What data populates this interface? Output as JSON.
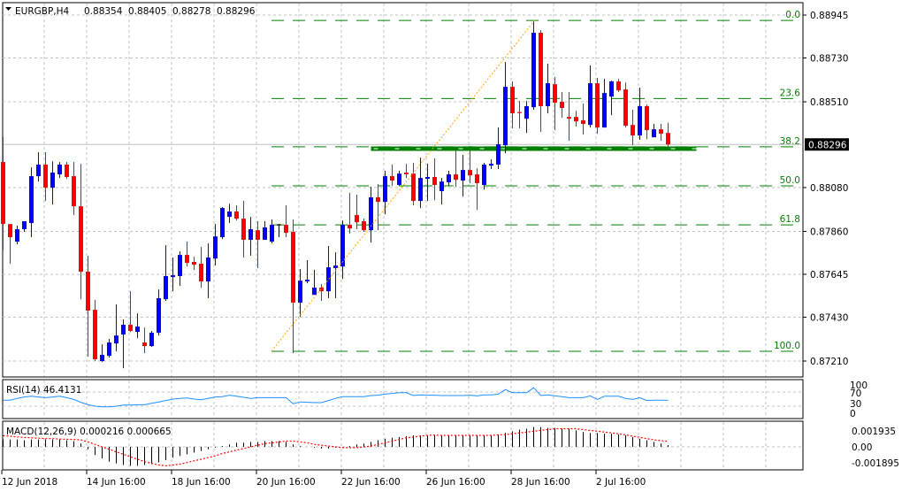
{
  "header": {
    "symbol": "EURGBP,H4",
    "open": "0.88354",
    "high": "0.88405",
    "low": "0.88278",
    "close": "0.88296"
  },
  "colors": {
    "bull": "#0000ff",
    "bear": "#ff0000",
    "doji": "#000000",
    "fib": "#008000",
    "trendline": "#ffa500",
    "rsi": "#1e90ff",
    "macd_hist": "#000000",
    "macd_signal": "#ff0000",
    "support": "#008000"
  },
  "chart_data": {
    "type": "candlestick",
    "title": "EURGBP,H4",
    "price_axis": {
      "range": [
        0.871,
        0.8896
      ],
      "ticks": [
        "0.88945",
        "0.88730",
        "0.88510",
        "0.88080",
        "0.87860",
        "0.87645",
        "0.87430",
        "0.87210"
      ],
      "current_price": "0.88296"
    },
    "time_labels": [
      {
        "bar": 0,
        "label": "12 Jun 2018"
      },
      {
        "bar": 12,
        "label": "14 Jun 16:00"
      },
      {
        "bar": 24,
        "label": "18 Jun 16:00"
      },
      {
        "bar": 36,
        "label": "20 Jun 16:00"
      },
      {
        "bar": 48,
        "label": "22 Jun 16:00"
      },
      {
        "bar": 60,
        "label": "26 Jun 16:00"
      },
      {
        "bar": 72,
        "label": "28 Jun 16:00"
      },
      {
        "bar": 84,
        "label": "2 Jul 16:00"
      }
    ],
    "ohlc": [
      [
        0.88208,
        0.88333,
        0.87765,
        0.87898
      ],
      [
        0.87897,
        0.87897,
        0.87698,
        0.87831
      ],
      [
        0.87809,
        0.87889,
        0.87795,
        0.87871
      ],
      [
        0.87871,
        0.87911,
        0.87858,
        0.87911
      ],
      [
        0.87902,
        0.88181,
        0.87831,
        0.88137
      ],
      [
        0.88137,
        0.88257,
        0.8811,
        0.88195
      ],
      [
        0.88195,
        0.88257,
        0.88013,
        0.88079
      ],
      [
        0.88079,
        0.88212,
        0.87995,
        0.88155
      ],
      [
        0.88146,
        0.88208,
        0.88128,
        0.88195
      ],
      [
        0.88195,
        0.88208,
        0.88124,
        0.88133
      ],
      [
        0.88137,
        0.88208,
        0.87942,
        0.87986
      ],
      [
        0.87986,
        0.88199,
        0.8752,
        0.87658
      ],
      [
        0.87658,
        0.87738,
        0.87232,
        0.87463
      ],
      [
        0.87467,
        0.87516,
        0.8721,
        0.87219
      ],
      [
        0.8721,
        0.87294,
        0.87205,
        0.87241
      ],
      [
        0.87236,
        0.87321,
        0.87227,
        0.87303
      ],
      [
        0.87298,
        0.87494,
        0.87259,
        0.87338
      ],
      [
        0.87343,
        0.87418,
        0.87174,
        0.87392
      ],
      [
        0.87392,
        0.8756,
        0.87356,
        0.87361
      ],
      [
        0.87356,
        0.87449,
        0.87325,
        0.87383
      ],
      [
        0.87303,
        0.87378,
        0.8725,
        0.87285
      ],
      [
        0.87285,
        0.87361,
        0.87281,
        0.87352
      ],
      [
        0.87352,
        0.87569,
        0.87338,
        0.87525
      ],
      [
        0.8752,
        0.87791,
        0.87511,
        0.87636
      ],
      [
        0.87631,
        0.87729,
        0.8756,
        0.8764
      ],
      [
        0.87636,
        0.8776,
        0.87587,
        0.87742
      ],
      [
        0.87742,
        0.87809,
        0.87684,
        0.87702
      ],
      [
        0.87707,
        0.87733,
        0.87667,
        0.87693
      ],
      [
        0.87698,
        0.87782,
        0.87578,
        0.87609
      ],
      [
        0.87609,
        0.878,
        0.87525,
        0.87729
      ],
      [
        0.87724,
        0.87897,
        0.87689,
        0.87835
      ],
      [
        0.87831,
        0.87982,
        0.87822,
        0.87977
      ],
      [
        0.87933,
        0.87999,
        0.87902,
        0.8796
      ],
      [
        0.8796,
        0.87991,
        0.87915,
        0.87924
      ],
      [
        0.87924,
        0.88013,
        0.87729,
        0.87818
      ],
      [
        0.87818,
        0.87933,
        0.87738,
        0.87871
      ],
      [
        0.87866,
        0.87911,
        0.87676,
        0.87818
      ],
      [
        0.87818,
        0.87911,
        0.87818,
        0.8788
      ],
      [
        0.87809,
        0.8792,
        0.878,
        0.87893
      ],
      [
        0.87893,
        0.87897,
        0.87831,
        0.87893
      ],
      [
        0.87893,
        0.87991,
        0.87831,
        0.87853
      ],
      [
        0.87858,
        0.8792,
        0.8725,
        0.87503
      ],
      [
        0.87503,
        0.87671,
        0.87432,
        0.87613
      ],
      [
        0.87609,
        0.87716,
        0.876,
        0.87618
      ],
      [
        0.87542,
        0.87667,
        0.87542,
        0.87578
      ],
      [
        0.87578,
        0.87596,
        0.87511,
        0.8756
      ],
      [
        0.8756,
        0.87787,
        0.87525,
        0.8768
      ],
      [
        0.87676,
        0.87755,
        0.87525,
        0.87689
      ],
      [
        0.87684,
        0.87915,
        0.87622,
        0.87893
      ],
      [
        0.87893,
        0.88053,
        0.87849,
        0.87875
      ],
      [
        0.87942,
        0.88044,
        0.87871,
        0.87906
      ],
      [
        0.87911,
        0.87924,
        0.87858,
        0.87866
      ],
      [
        0.87866,
        0.88084,
        0.87804,
        0.88031
      ],
      [
        0.88031,
        0.88097,
        0.87866,
        0.88008
      ],
      [
        0.88008,
        0.88164,
        0.87946,
        0.88137
      ],
      [
        0.88137,
        0.88195,
        0.88088,
        0.88115
      ],
      [
        0.88093,
        0.88164,
        0.88088,
        0.8815
      ],
      [
        0.88155,
        0.88199,
        0.88128,
        0.88146
      ],
      [
        0.8815,
        0.88204,
        0.87991,
        0.88013
      ],
      [
        0.88013,
        0.8823,
        0.87977,
        0.88128
      ],
      [
        0.88124,
        0.88199,
        0.88013,
        0.88133
      ],
      [
        0.88133,
        0.88226,
        0.88017,
        0.88093
      ],
      [
        0.88062,
        0.88128,
        0.87995,
        0.8811
      ],
      [
        0.88106,
        0.88164,
        0.88088,
        0.88146
      ],
      [
        0.88146,
        0.88279,
        0.88084,
        0.88119
      ],
      [
        0.88115,
        0.88244,
        0.88035,
        0.88168
      ],
      [
        0.88168,
        0.88288,
        0.88102,
        0.88141
      ],
      [
        0.88146,
        0.88177,
        0.87968,
        0.88102
      ],
      [
        0.88093,
        0.88204,
        0.8807,
        0.88195
      ],
      [
        0.8819,
        0.88221,
        0.88173,
        0.88199
      ],
      [
        0.88195,
        0.88381,
        0.88173,
        0.88297
      ],
      [
        0.88292,
        0.88709,
        0.88252,
        0.88585
      ],
      [
        0.88585,
        0.88612,
        0.88377,
        0.88452
      ],
      [
        0.88456,
        0.88514,
        0.88377,
        0.88452
      ],
      [
        0.88425,
        0.88514,
        0.88354,
        0.88488
      ],
      [
        0.88483,
        0.88914,
        0.8847,
        0.88856
      ],
      [
        0.88856,
        0.88869,
        0.88359,
        0.88488
      ],
      [
        0.88488,
        0.88701,
        0.88452,
        0.88603
      ],
      [
        0.88598,
        0.88634,
        0.88368,
        0.88505
      ],
      [
        0.8851,
        0.88559,
        0.8843,
        0.88479
      ],
      [
        0.88434,
        0.88559,
        0.88315,
        0.88425
      ],
      [
        0.88434,
        0.88465,
        0.88386,
        0.88412
      ],
      [
        0.88417,
        0.88501,
        0.88346,
        0.88399
      ],
      [
        0.88394,
        0.88692,
        0.88381,
        0.88603
      ],
      [
        0.88603,
        0.8863,
        0.8835,
        0.88381
      ],
      [
        0.88381,
        0.88625,
        0.88381,
        0.88554
      ],
      [
        0.88536,
        0.88616,
        0.88443,
        0.88612
      ],
      [
        0.88612,
        0.88625,
        0.88559,
        0.88567
      ],
      [
        0.88572,
        0.88607,
        0.88381,
        0.8839
      ],
      [
        0.88394,
        0.8847,
        0.88292,
        0.88341
      ],
      [
        0.88341,
        0.88581,
        0.88319,
        0.88488
      ],
      [
        0.88488,
        0.88496,
        0.88323,
        0.88368
      ],
      [
        0.88332,
        0.88399,
        0.88332,
        0.88372
      ],
      [
        0.88372,
        0.88399,
        0.88315,
        0.8835
      ],
      [
        0.88354,
        0.88405,
        0.88278,
        0.88296
      ]
    ],
    "fibonacci": {
      "high": 0.88918,
      "low": 0.87259,
      "from_bar": 38,
      "to_bar": 75,
      "levels": [
        {
          "level": 0,
          "label": "0.0"
        },
        {
          "level": 23.6,
          "label": "23.6"
        },
        {
          "level": 38.2,
          "label": "38.2"
        },
        {
          "level": 50,
          "label": "50.0"
        },
        {
          "level": 61.8,
          "label": "61.8"
        },
        {
          "level": 100,
          "label": "100.0"
        }
      ]
    },
    "support_line": {
      "price": 0.88275,
      "from_bar": 52,
      "to_bar": 98
    },
    "rsi": {
      "label": "RSI(14) 46.4131",
      "levels": [
        "100",
        "70",
        "30",
        "0"
      ],
      "values": [
        47,
        47,
        52,
        56,
        58,
        56,
        54,
        56,
        58,
        54,
        49,
        41,
        34,
        30,
        28,
        28,
        30,
        33,
        33,
        34,
        34,
        38,
        42,
        46,
        50,
        52,
        53,
        50,
        48,
        52,
        56,
        57,
        61,
        58,
        55,
        52,
        54,
        54,
        54,
        54,
        54,
        37,
        42,
        41,
        40,
        40,
        46,
        52,
        57,
        57,
        57,
        57,
        60,
        61,
        64,
        66,
        68,
        68,
        60,
        62,
        61,
        61,
        60,
        60,
        60,
        60,
        61,
        59,
        62,
        62,
        64,
        77,
        68,
        68,
        68,
        82,
        60,
        62,
        59,
        57,
        54,
        54,
        54,
        59,
        49,
        58,
        58,
        58,
        52,
        49,
        54,
        46,
        47,
        47,
        46.4131
      ]
    },
    "macd": {
      "label": "MACD(12,26,9) 0.000216 0.000665",
      "ticks": [
        "0.001935",
        "0.00",
        "-0.001895"
      ],
      "histogram": [
        0.0009,
        0.0009,
        0.0009,
        0.0008,
        0.0009,
        0.0009,
        0.0009,
        0.0009,
        0.0009,
        0.0008,
        0.0007,
        0.0004,
        -0.0003,
        -0.001,
        -0.0014,
        -0.0018,
        -0.002,
        -0.0022,
        -0.0023,
        -0.0023,
        -0.0022,
        -0.0021,
        -0.0019,
        -0.0016,
        -0.0013,
        -0.0011,
        -0.0009,
        -0.0007,
        -0.0005,
        -0.0003,
        -0.0001,
        0.0001,
        0.0003,
        0.0005,
        0.0005,
        0.0006,
        0.0006,
        0.0007,
        0.0007,
        0.0007,
        0.0006,
        0.0003,
        0.0001,
        0,
        -0.0001,
        -0.0002,
        -0.0002,
        -0.0001,
        0,
        0.0001,
        0.0003,
        0.0004,
        0.0006,
        0.0008,
        0.001,
        0.0011,
        0.0012,
        0.0013,
        0.0014,
        0.0014,
        0.0014,
        0.0014,
        0.0014,
        0.0014,
        0.0014,
        0.0014,
        0.0014,
        0.0014,
        0.0014,
        0.0014,
        0.0015,
        0.0017,
        0.0019,
        0.0021,
        0.0022,
        0.0024,
        0.0024,
        0.0023,
        0.0023,
        0.0022,
        0.0022,
        0.002,
        0.0018,
        0.0017,
        0.0017,
        0.0016,
        0.0016,
        0.0015,
        0.0014,
        0.0012,
        0.001,
        0.0008,
        0.0006,
        0.0004,
        0.000216
      ],
      "signal": [
        0.00137,
        0.0013,
        0.0012,
        0.00115,
        0.0011,
        0.00105,
        0.001,
        0.001,
        0.00095,
        0.00093,
        0.0009,
        0.00085,
        0.0006,
        0.0003,
        0,
        -0.0003,
        -0.0006,
        -0.0009,
        -0.0012,
        -0.0015,
        -0.0018,
        -0.002,
        -0.0022,
        -0.0023,
        -0.0022,
        -0.0021,
        -0.0019,
        -0.0017,
        -0.0015,
        -0.0013,
        -0.0011,
        -0.0008,
        -0.0006,
        -0.0004,
        -0.0002,
        0,
        0.0002,
        0.0004,
        0.0005,
        0.0006,
        0.0007,
        0.0007,
        0.0006,
        0.0005,
        0.0003,
        0.0002,
        0.0001,
        0,
        -0.0001,
        -0.0001,
        -0.0001,
        0,
        0.0001,
        0.0003,
        0.0005,
        0.0007,
        0.0009,
        0.0011,
        0.0012,
        0.0013,
        0.0014,
        0.00144,
        0.0014,
        0.0014,
        0.0014,
        0.0014,
        0.0014,
        0.0014,
        0.0014,
        0.0014,
        0.00145,
        0.0015,
        0.0016,
        0.0017,
        0.0018,
        0.0019,
        0.002,
        0.0021,
        0.0022,
        0.0022,
        0.0022,
        0.0022,
        0.0021,
        0.002,
        0.0019,
        0.0018,
        0.0017,
        0.0016,
        0.00145,
        0.0013,
        0.00115,
        0.001,
        0.00085,
        0.00075,
        0.000665
      ]
    }
  }
}
